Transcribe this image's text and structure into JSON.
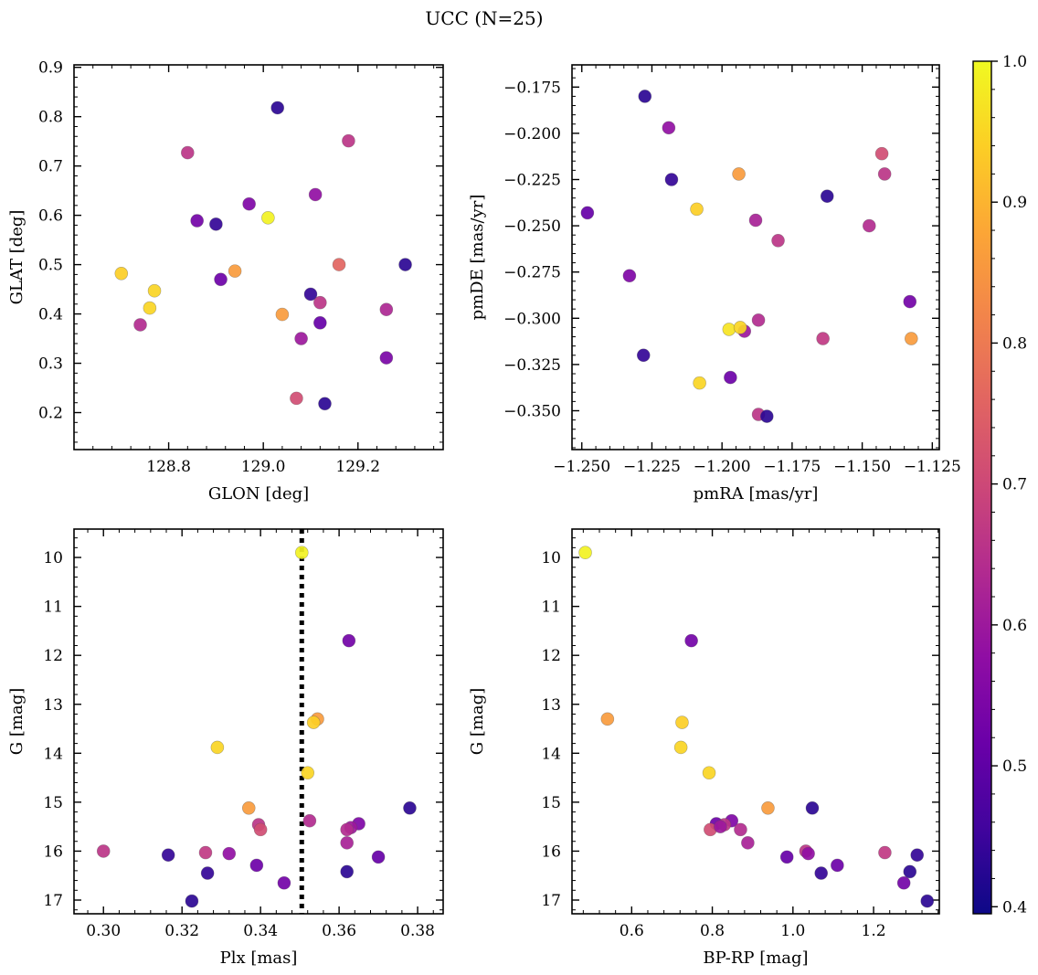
{
  "figure": {
    "title": "UCC (N=25)"
  },
  "colorbar": {
    "cmap": "plasma",
    "range": [
      0.395,
      1.0
    ],
    "ticks": [
      0.4,
      0.5,
      0.6,
      0.7,
      0.8,
      0.9,
      1.0
    ],
    "tick_labels": [
      "0.4",
      "0.5",
      "0.6",
      "0.7",
      "0.8",
      "0.9",
      "1.0"
    ]
  },
  "chart_data": [
    {
      "type": "scatter",
      "id": "glon-glat",
      "title": "",
      "xlabel": "GLON [deg]",
      "ylabel": "GLAT [deg]",
      "xlim": [
        128.6,
        129.38
      ],
      "ylim": [
        0.125,
        0.905
      ],
      "y_inverted": false,
      "xticks": [
        128.8,
        129.0,
        129.2
      ],
      "xtick_labels": [
        "128.8",
        "129.0",
        "129.2"
      ],
      "yticks": [
        0.2,
        0.3,
        0.4,
        0.5,
        0.6,
        0.7,
        0.8,
        0.9
      ],
      "ytick_labels": [
        "0.2",
        "0.3",
        "0.4",
        "0.5",
        "0.6",
        "0.7",
        "0.8",
        "0.9"
      ],
      "points": [
        {
          "x": 129.03,
          "y": 0.818,
          "c": 0.43
        },
        {
          "x": 129.18,
          "y": 0.751,
          "c": 0.66
        },
        {
          "x": 128.84,
          "y": 0.727,
          "c": 0.66
        },
        {
          "x": 129.11,
          "y": 0.642,
          "c": 0.58
        },
        {
          "x": 128.97,
          "y": 0.623,
          "c": 0.55
        },
        {
          "x": 129.01,
          "y": 0.595,
          "c": 0.99
        },
        {
          "x": 128.86,
          "y": 0.589,
          "c": 0.53
        },
        {
          "x": 128.9,
          "y": 0.582,
          "c": 0.44
        },
        {
          "x": 129.16,
          "y": 0.5,
          "c": 0.76
        },
        {
          "x": 129.3,
          "y": 0.5,
          "c": 0.43
        },
        {
          "x": 128.94,
          "y": 0.487,
          "c": 0.86
        },
        {
          "x": 128.7,
          "y": 0.482,
          "c": 0.94
        },
        {
          "x": 128.91,
          "y": 0.47,
          "c": 0.52
        },
        {
          "x": 128.77,
          "y": 0.447,
          "c": 0.95
        },
        {
          "x": 129.1,
          "y": 0.44,
          "c": 0.44
        },
        {
          "x": 129.12,
          "y": 0.423,
          "c": 0.66
        },
        {
          "x": 128.76,
          "y": 0.412,
          "c": 0.95
        },
        {
          "x": 129.26,
          "y": 0.409,
          "c": 0.63
        },
        {
          "x": 129.04,
          "y": 0.399,
          "c": 0.86
        },
        {
          "x": 129.12,
          "y": 0.382,
          "c": 0.51
        },
        {
          "x": 128.74,
          "y": 0.378,
          "c": 0.64
        },
        {
          "x": 129.08,
          "y": 0.35,
          "c": 0.6
        },
        {
          "x": 129.26,
          "y": 0.311,
          "c": 0.54
        },
        {
          "x": 129.07,
          "y": 0.229,
          "c": 0.71
        },
        {
          "x": 129.13,
          "y": 0.218,
          "c": 0.43
        }
      ]
    },
    {
      "type": "scatter",
      "id": "pmra-pmde",
      "title": "",
      "xlabel": "pmRA [mas/yr]",
      "ylabel": "pmDE [mas/yr]",
      "xlim": [
        -1.2535,
        -1.1225
      ],
      "ylim": [
        -0.371,
        -0.163
      ],
      "y_inverted": false,
      "xticks": [
        -1.25,
        -1.225,
        -1.2,
        -1.175,
        -1.15,
        -1.125
      ],
      "xtick_labels": [
        "−1.250",
        "−1.225",
        "−1.200",
        "−1.175",
        "−1.150",
        "−1.125"
      ],
      "yticks": [
        -0.35,
        -0.325,
        -0.3,
        -0.275,
        -0.25,
        -0.225,
        -0.2,
        -0.175
      ],
      "ytick_labels": [
        "−0.350",
        "−0.325",
        "−0.300",
        "−0.275",
        "−0.250",
        "−0.225",
        "−0.200",
        "−0.175"
      ],
      "points": [
        {
          "x": -1.2275,
          "y": -0.18,
          "c": 0.43
        },
        {
          "x": -1.219,
          "y": -0.197,
          "c": 0.58
        },
        {
          "x": -1.218,
          "y": -0.225,
          "c": 0.44
        },
        {
          "x": -1.194,
          "y": -0.222,
          "c": 0.86
        },
        {
          "x": -1.143,
          "y": -0.211,
          "c": 0.71
        },
        {
          "x": -1.142,
          "y": -0.222,
          "c": 0.66
        },
        {
          "x": -1.1625,
          "y": -0.234,
          "c": 0.43
        },
        {
          "x": -1.209,
          "y": -0.241,
          "c": 0.94
        },
        {
          "x": -1.248,
          "y": -0.243,
          "c": 0.51
        },
        {
          "x": -1.188,
          "y": -0.247,
          "c": 0.62
        },
        {
          "x": -1.1475,
          "y": -0.25,
          "c": 0.64
        },
        {
          "x": -1.18,
          "y": -0.258,
          "c": 0.66
        },
        {
          "x": -1.233,
          "y": -0.277,
          "c": 0.55
        },
        {
          "x": -1.133,
          "y": -0.291,
          "c": 0.53
        },
        {
          "x": -1.187,
          "y": -0.301,
          "c": 0.64
        },
        {
          "x": -1.192,
          "y": -0.307,
          "c": 0.6
        },
        {
          "x": -1.1975,
          "y": -0.306,
          "c": 0.97
        },
        {
          "x": -1.1935,
          "y": -0.305,
          "c": 0.95
        },
        {
          "x": -1.164,
          "y": -0.311,
          "c": 0.67
        },
        {
          "x": -1.1325,
          "y": -0.311,
          "c": 0.86
        },
        {
          "x": -1.228,
          "y": -0.32,
          "c": 0.44
        },
        {
          "x": -1.197,
          "y": -0.332,
          "c": 0.52
        },
        {
          "x": -1.208,
          "y": -0.335,
          "c": 0.95
        },
        {
          "x": -1.187,
          "y": -0.352,
          "c": 0.66
        },
        {
          "x": -1.184,
          "y": -0.353,
          "c": 0.43
        }
      ]
    },
    {
      "type": "scatter",
      "id": "plx-g",
      "title": "",
      "xlabel": "Plx [mas]",
      "ylabel": "G [mag]",
      "xlim": [
        0.2925,
        0.3865
      ],
      "ylim": [
        17.28,
        9.42
      ],
      "y_inverted": true,
      "vline": {
        "x": 0.3505,
        "style": "dotted",
        "color": "#000000"
      },
      "xticks": [
        0.3,
        0.32,
        0.34,
        0.36,
        0.38
      ],
      "xtick_labels": [
        "0.30",
        "0.32",
        "0.34",
        "0.36",
        "0.38"
      ],
      "yticks": [
        10,
        11,
        12,
        13,
        14,
        15,
        16,
        17
      ],
      "ytick_labels": [
        "10",
        "11",
        "12",
        "13",
        "14",
        "15",
        "16",
        "17"
      ],
      "points": [
        {
          "x": 0.3505,
          "y": 9.9,
          "c": 0.99
        },
        {
          "x": 0.3625,
          "y": 11.7,
          "c": 0.53
        },
        {
          "x": 0.3545,
          "y": 13.3,
          "c": 0.86
        },
        {
          "x": 0.3535,
          "y": 13.37,
          "c": 0.94
        },
        {
          "x": 0.329,
          "y": 13.88,
          "c": 0.95
        },
        {
          "x": 0.352,
          "y": 14.4,
          "c": 0.95
        },
        {
          "x": 0.337,
          "y": 15.12,
          "c": 0.86
        },
        {
          "x": 0.378,
          "y": 15.12,
          "c": 0.43
        },
        {
          "x": 0.3525,
          "y": 15.38,
          "c": 0.64
        },
        {
          "x": 0.3395,
          "y": 15.46,
          "c": 0.66
        },
        {
          "x": 0.365,
          "y": 15.44,
          "c": 0.55
        },
        {
          "x": 0.363,
          "y": 15.52,
          "c": 0.6
        },
        {
          "x": 0.362,
          "y": 15.56,
          "c": 0.64
        },
        {
          "x": 0.34,
          "y": 15.56,
          "c": 0.71
        },
        {
          "x": 0.362,
          "y": 15.83,
          "c": 0.62
        },
        {
          "x": 0.3,
          "y": 16.0,
          "c": 0.66
        },
        {
          "x": 0.326,
          "y": 16.03,
          "c": 0.67
        },
        {
          "x": 0.332,
          "y": 16.05,
          "c": 0.58
        },
        {
          "x": 0.3165,
          "y": 16.08,
          "c": 0.44
        },
        {
          "x": 0.37,
          "y": 16.12,
          "c": 0.51
        },
        {
          "x": 0.339,
          "y": 16.29,
          "c": 0.52
        },
        {
          "x": 0.362,
          "y": 16.42,
          "c": 0.43
        },
        {
          "x": 0.3265,
          "y": 16.45,
          "c": 0.44
        },
        {
          "x": 0.346,
          "y": 16.65,
          "c": 0.53
        },
        {
          "x": 0.3225,
          "y": 17.02,
          "c": 0.43
        }
      ]
    },
    {
      "type": "scatter",
      "id": "bprp-g",
      "title": "",
      "xlabel": "BP-RP [mag]",
      "ylabel": "G [mag]",
      "xlim": [
        0.452,
        1.363
      ],
      "ylim": [
        17.28,
        9.42
      ],
      "y_inverted": true,
      "xticks": [
        0.6,
        0.8,
        1.0,
        1.2
      ],
      "xtick_labels": [
        "0.6",
        "0.8",
        "1.0",
        "1.2"
      ],
      "yticks": [
        10,
        11,
        12,
        13,
        14,
        15,
        16,
        17
      ],
      "ytick_labels": [
        "10",
        "11",
        "12",
        "13",
        "14",
        "15",
        "16",
        "17"
      ],
      "points": [
        {
          "x": 0.485,
          "y": 9.9,
          "c": 0.99
        },
        {
          "x": 0.748,
          "y": 11.7,
          "c": 0.53
        },
        {
          "x": 0.54,
          "y": 13.3,
          "c": 0.86
        },
        {
          "x": 0.725,
          "y": 13.37,
          "c": 0.94
        },
        {
          "x": 0.722,
          "y": 13.88,
          "c": 0.95
        },
        {
          "x": 0.792,
          "y": 14.4,
          "c": 0.95
        },
        {
          "x": 0.938,
          "y": 15.12,
          "c": 0.86
        },
        {
          "x": 1.048,
          "y": 15.12,
          "c": 0.43
        },
        {
          "x": 0.848,
          "y": 15.38,
          "c": 0.55
        },
        {
          "x": 0.81,
          "y": 15.44,
          "c": 0.52
        },
        {
          "x": 0.83,
          "y": 15.46,
          "c": 0.66
        },
        {
          "x": 0.87,
          "y": 15.56,
          "c": 0.64
        },
        {
          "x": 0.795,
          "y": 15.56,
          "c": 0.71
        },
        {
          "x": 0.888,
          "y": 15.83,
          "c": 0.62
        },
        {
          "x": 1.228,
          "y": 16.03,
          "c": 0.67
        },
        {
          "x": 1.032,
          "y": 16.0,
          "c": 0.66
        },
        {
          "x": 1.038,
          "y": 16.05,
          "c": 0.58
        },
        {
          "x": 1.308,
          "y": 16.08,
          "c": 0.44
        },
        {
          "x": 0.985,
          "y": 16.12,
          "c": 0.51
        },
        {
          "x": 1.11,
          "y": 16.29,
          "c": 0.52
        },
        {
          "x": 1.29,
          "y": 16.42,
          "c": 0.43
        },
        {
          "x": 1.07,
          "y": 16.45,
          "c": 0.44
        },
        {
          "x": 1.275,
          "y": 16.65,
          "c": 0.53
        },
        {
          "x": 1.333,
          "y": 17.02,
          "c": 0.43
        },
        {
          "x": 0.82,
          "y": 15.5,
          "c": 0.6
        }
      ]
    }
  ]
}
